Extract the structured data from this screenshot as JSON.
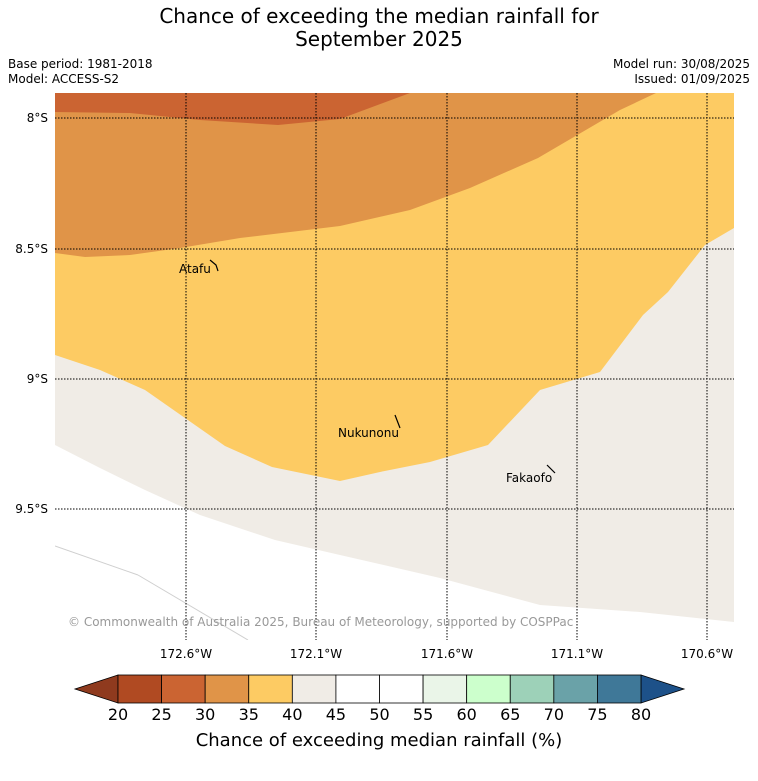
{
  "title_line1": "Chance of exceeding the median rainfall for",
  "title_line2": "September 2025",
  "base_period": "Base period: 1981-2018",
  "model": "Model: ACCESS-S2",
  "model_run": "Model run: 30/08/2025",
  "issued": "Issued: 01/09/2025",
  "lat_labels": [
    "8°S",
    "8.5°S",
    "9°S",
    "9.5°S"
  ],
  "lon_labels": [
    "172.6°W",
    "172.1°W",
    "171.6°W",
    "171.1°W",
    "170.6°W"
  ],
  "places": [
    "Atafu",
    "Nukunonu",
    "Fakaofo"
  ],
  "copyright": "© Commonwealth of Australia 2025, Bureau of Meteorology, supported by COSPPac",
  "colorbar": {
    "ticks": [
      "20",
      "25",
      "30",
      "35",
      "40",
      "45",
      "50",
      "55",
      "60",
      "65",
      "70",
      "75",
      "80"
    ],
    "colors": [
      "#8f3a1e",
      "#b04a22",
      "#cb6432",
      "#e09448",
      "#fdcb63",
      "#f0ece6",
      "#ffffff",
      "#ffffff",
      "#eaf5e8",
      "#ccffcc",
      "#9dd1b8",
      "#6aa2a8",
      "#3f7898",
      "#1d5189"
    ],
    "label": "Chance of exceeding median rainfall (%)"
  }
}
